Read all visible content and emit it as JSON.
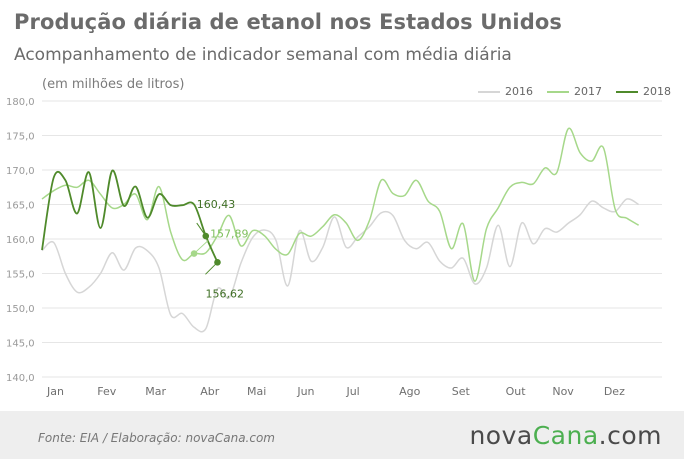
{
  "header": {
    "title": "Produção diária de etanol nos Estados Unidos",
    "subtitle": "Acompanhamento de indicador semanal com média diária",
    "unit": "(em milhões de litros)"
  },
  "footer": {
    "source": "Fonte:  EIA / Elaboração:  novaCana.com",
    "brand_prefix": "nova",
    "brand_name": "Cana",
    "brand_suffix": ".com"
  },
  "colors": {
    "s2016": "#d6d6d6",
    "s2017": "#a6d88a",
    "s2018": "#4f8a2b",
    "grid": "#e6e6e6",
    "axis_text": "#9a9a9a"
  },
  "chart_data": {
    "type": "line",
    "title": "Produção diária de etanol nos Estados Unidos",
    "subtitle": "Acompanhamento de indicador semanal com média diária",
    "ylabel": "(em milhões de litros)",
    "ylim": [
      140,
      180
    ],
    "yticks": [
      "180,0",
      "175,0",
      "170,0",
      "165,0",
      "160,0",
      "155,0",
      "150,0",
      "145,0",
      "140,0"
    ],
    "ytick_values": [
      180,
      175,
      170,
      165,
      160,
      155,
      150,
      145,
      140
    ],
    "xlim": [
      0,
      53
    ],
    "month_labels": [
      "Jan",
      "Fev",
      "Mar",
      "Abr",
      "Mai",
      "Jun",
      "Jul",
      "Ago",
      "Set",
      "Out",
      "Nov",
      "Dez"
    ],
    "month_weeks": [
      0,
      4.3,
      8.4,
      13.1,
      17.1,
      21.4,
      25.6,
      30.1,
      34.6,
      39.2,
      43.2,
      47.6
    ],
    "grid": true,
    "legend_position": "top-right",
    "series": [
      {
        "name": "2016",
        "color_key": "s2016",
        "x": [
          0,
          1,
          2,
          3,
          4,
          5,
          6,
          7,
          8,
          9,
          10,
          11,
          12,
          13,
          14,
          15,
          16,
          17,
          18,
          19,
          20,
          21,
          22,
          23,
          24,
          25,
          26,
          27,
          28,
          29,
          30,
          31,
          32,
          33,
          34,
          35,
          36,
          37,
          38,
          39,
          40,
          41,
          42,
          43,
          44,
          45,
          46,
          47,
          48,
          49,
          50,
          51
        ],
        "values": [
          158.3,
          159.5,
          155.0,
          152.3,
          153.0,
          155.0,
          158.0,
          155.5,
          158.7,
          158.3,
          155.8,
          149.0,
          149.2,
          147.2,
          147.0,
          152.8,
          151.5,
          156.5,
          160.2,
          161.3,
          159.8,
          153.2,
          161.2,
          156.8,
          158.8,
          163.2,
          158.8,
          160.3,
          161.8,
          163.8,
          163.4,
          159.8,
          158.6,
          159.5,
          156.8,
          155.8,
          157.2,
          153.5,
          155.8,
          162.0,
          156.0,
          162.3,
          159.3,
          161.5,
          161.0,
          162.3,
          163.5,
          165.5,
          164.5,
          164.0,
          165.8,
          165.0
        ]
      },
      {
        "name": "2017",
        "color_key": "s2017",
        "x": [
          0,
          1,
          2,
          3,
          4,
          5,
          6,
          7,
          8,
          9,
          10,
          11,
          12,
          13,
          14,
          15,
          16,
          17,
          18,
          19,
          20,
          21,
          22,
          23,
          24,
          25,
          26,
          27,
          28,
          29,
          30,
          31,
          32,
          33,
          34,
          35,
          36,
          37,
          38,
          39,
          40,
          41,
          42,
          43,
          44,
          45,
          46,
          47,
          48,
          49,
          50,
          51
        ],
        "values": [
          165.8,
          167.0,
          167.8,
          167.5,
          168.5,
          166.5,
          164.5,
          165.0,
          166.5,
          162.8,
          167.6,
          161.0,
          157.0,
          157.89,
          158.0,
          160.5,
          163.4,
          159.0,
          161.2,
          160.5,
          158.5,
          157.8,
          160.8,
          160.4,
          161.8,
          163.5,
          162.3,
          159.8,
          162.7,
          168.5,
          166.6,
          166.3,
          168.5,
          165.5,
          164.0,
          158.6,
          162.2,
          153.9,
          161.5,
          164.5,
          167.5,
          168.2,
          168.0,
          170.3,
          169.6,
          176.0,
          172.5,
          171.3,
          173.2,
          164.3,
          163.0,
          162.0
        ]
      },
      {
        "name": "2018",
        "color_key": "s2018",
        "x": [
          0,
          1,
          2,
          3,
          4,
          5,
          6,
          7,
          8,
          9,
          10,
          11,
          12,
          13,
          14,
          15
        ],
        "values": [
          158.4,
          168.9,
          168.5,
          163.7,
          169.7,
          161.6,
          169.9,
          164.8,
          167.6,
          163.1,
          166.5,
          164.9,
          164.9,
          165.0,
          160.43,
          156.62
        ]
      }
    ],
    "annotations": [
      {
        "label": "160,43",
        "series": "2018",
        "x": 14,
        "value": 160.43
      },
      {
        "label": "157,89",
        "series": "2017",
        "x": 13,
        "value": 157.89
      },
      {
        "label": "156,62",
        "series": "2018",
        "x": 15,
        "value": 156.62
      }
    ]
  }
}
